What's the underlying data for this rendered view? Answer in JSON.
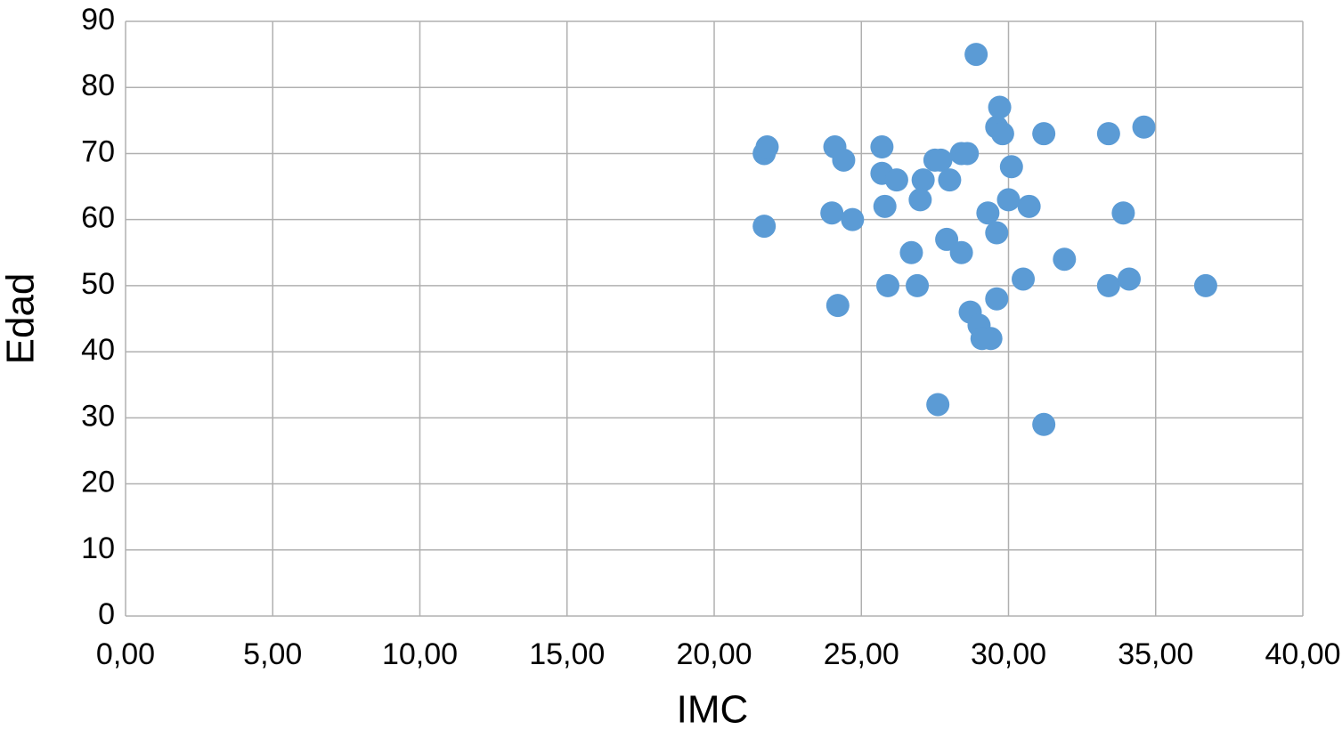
{
  "chart_data": {
    "type": "scatter",
    "x_label": "IMC",
    "y_label": "Edad",
    "color": "#5b9bd5",
    "grid": true,
    "x": [
      21.7,
      21.8,
      21.7,
      24.1,
      24.4,
      24.0,
      24.7,
      24.2,
      25.7,
      25.7,
      26.2,
      25.8,
      25.9,
      26.7,
      27.1,
      27.0,
      26.9,
      27.5,
      27.7,
      27.6,
      27.9,
      28.0,
      28.4,
      28.6,
      28.4,
      28.9,
      28.7,
      29.0,
      29.1,
      29.4,
      29.3,
      29.6,
      29.6,
      29.6,
      29.7,
      29.8,
      30.0,
      30.1,
      30.5,
      30.7,
      31.2,
      31.2,
      31.9,
      33.4,
      33.4,
      33.9,
      34.1,
      34.6,
      36.7
    ],
    "values": [
      70,
      71,
      59,
      71,
      69,
      61,
      60,
      47,
      71,
      67,
      66,
      62,
      50,
      55,
      66,
      63,
      50,
      69,
      69,
      32,
      57,
      66,
      70,
      70,
      55,
      85,
      46,
      44,
      42,
      42,
      61,
      58,
      48,
      74,
      77,
      73,
      63,
      68,
      51,
      62,
      73,
      29,
      54,
      73,
      50,
      61,
      51,
      74,
      50
    ],
    "xlim": [
      0,
      40
    ],
    "ylim": [
      0,
      90
    ],
    "xticks": [
      {
        "value": 0,
        "label": "0,00"
      },
      {
        "value": 5,
        "label": "5,00"
      },
      {
        "value": 10,
        "label": "10,00"
      },
      {
        "value": 15,
        "label": "15,00"
      },
      {
        "value": 20,
        "label": "20,00"
      },
      {
        "value": 25,
        "label": "25,00"
      },
      {
        "value": 30,
        "label": "30,00"
      },
      {
        "value": 35,
        "label": "35,00"
      },
      {
        "value": 40,
        "label": "40,00"
      }
    ],
    "yticks": [
      0,
      10,
      20,
      30,
      40,
      50,
      60,
      70,
      80,
      90
    ]
  }
}
